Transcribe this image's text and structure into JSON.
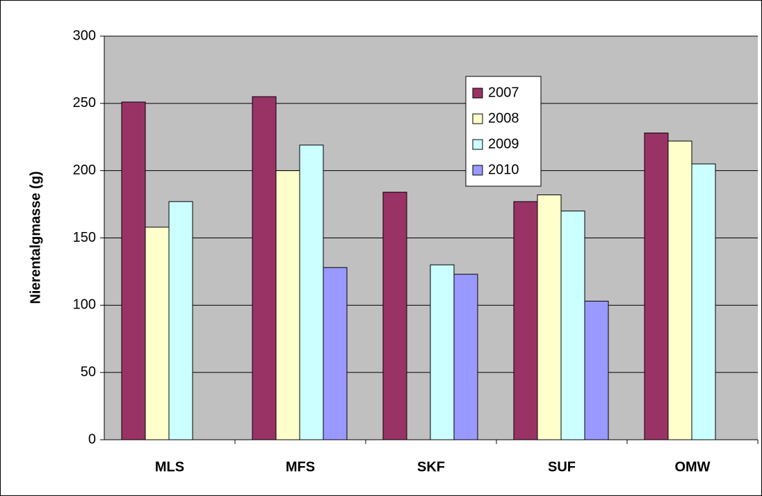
{
  "chart_data": {
    "type": "bar",
    "y_label": "Nierentalgmasse (g)",
    "categories": [
      "MLS",
      "MFS",
      "SKF",
      "SUF",
      "OMW"
    ],
    "series": [
      {
        "name": "2007",
        "color": "#993366",
        "values": [
          251,
          255,
          184,
          177,
          228
        ]
      },
      {
        "name": "2008",
        "color": "#ffffcc",
        "values": [
          158,
          200,
          null,
          182,
          222
        ]
      },
      {
        "name": "2009",
        "color": "#ccffff",
        "values": [
          177,
          219,
          130,
          170,
          205
        ]
      },
      {
        "name": "2010",
        "color": "#9999ff",
        "values": [
          null,
          128,
          123,
          103,
          null
        ]
      }
    ],
    "ylim": [
      0,
      300
    ],
    "yticks": [
      0,
      50,
      100,
      150,
      200,
      250,
      300
    ],
    "grid": true
  }
}
